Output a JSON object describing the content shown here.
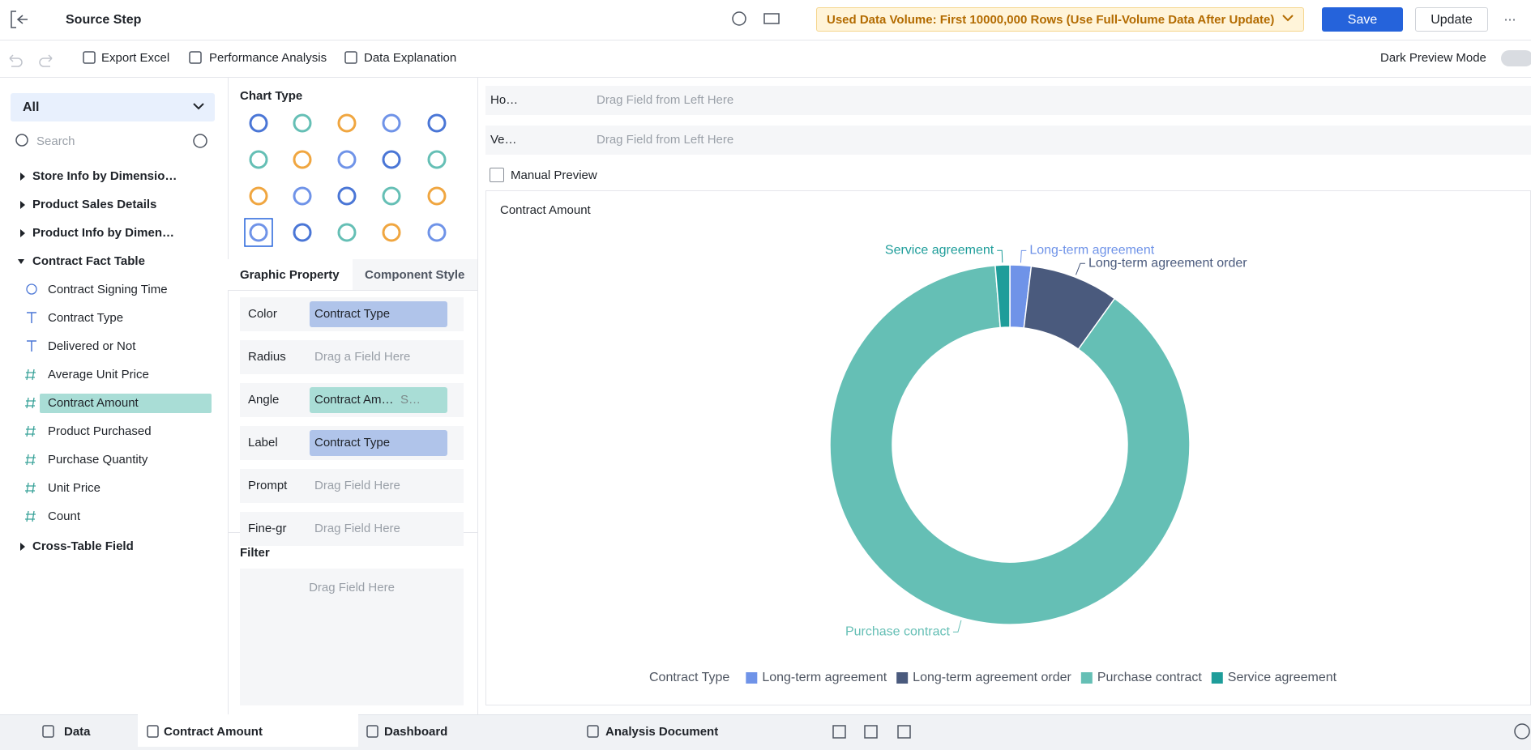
{
  "header": {
    "title": "Source Step",
    "notice": "Used Data Volume: First 10000,000 Rows (Use Full-Volume Data After Update)",
    "save": "Save",
    "update": "Update"
  },
  "toolbar": {
    "items": [
      "Export Excel",
      "Performance Analysis",
      "Data Explanation"
    ],
    "dark_mode": "Dark Preview Mode"
  },
  "fields": {
    "scope": "All",
    "search": "Search",
    "groups": [
      {
        "name": "Store Info by Dimensio…"
      },
      {
        "name": "Product Sales Details"
      },
      {
        "name": "Product Info by Dimen…"
      },
      {
        "name": "Contract Fact Table",
        "fields": [
          "Contract Signing Time",
          "Contract Type",
          "Delivered or Not",
          "Average Unit Price",
          "Contract Amount",
          "Product Purchased",
          "Purchase Quantity",
          "Unit Price",
          "Count"
        ]
      },
      {
        "name": "Cross-Table Field"
      }
    ]
  },
  "config": {
    "chart_type": "Chart Type",
    "tabs": [
      "Graphic Property",
      "Component Style"
    ],
    "properties": [
      {
        "label": "Color",
        "value": "Contract Type"
      },
      {
        "label": "Radius",
        "placeholder": "Drag a Field Here"
      },
      {
        "label": "Angle",
        "value": "Contract Am…",
        "suffix": "S…"
      },
      {
        "label": "Label",
        "value": "Contract Type"
      },
      {
        "label": "Prompt",
        "placeholder": "Drag Field Here"
      },
      {
        "label": "Fine-gr",
        "placeholder": "Drag Field Here"
      }
    ],
    "filter": {
      "title": "Filter",
      "placeholder": "Drag Field Here"
    }
  },
  "axes": {
    "rows": [
      {
        "label": "Ho…",
        "placeholder": "Drag Field from Left Here"
      },
      {
        "label": "Ve…",
        "placeholder": "Drag Field from Left Here"
      }
    ],
    "manual_preview": "Manual Preview"
  },
  "chart_data": {
    "type": "pie",
    "donut": true,
    "title": "Contract Amount",
    "legend_title": "Contract Type",
    "categories": [
      "Long-term agreement",
      "Long-term agreement order",
      "Purchase contract",
      "Service agreement"
    ],
    "values": [
      1.9,
      8.0,
      88.8,
      1.3
    ],
    "colors": [
      "#6f93e8",
      "#4a5a7d",
      "#65bfb5",
      "#1e9d9a"
    ]
  },
  "bottom_tabs": [
    "Data",
    "Contract Amount",
    "Dashboard",
    "Analysis Document"
  ]
}
